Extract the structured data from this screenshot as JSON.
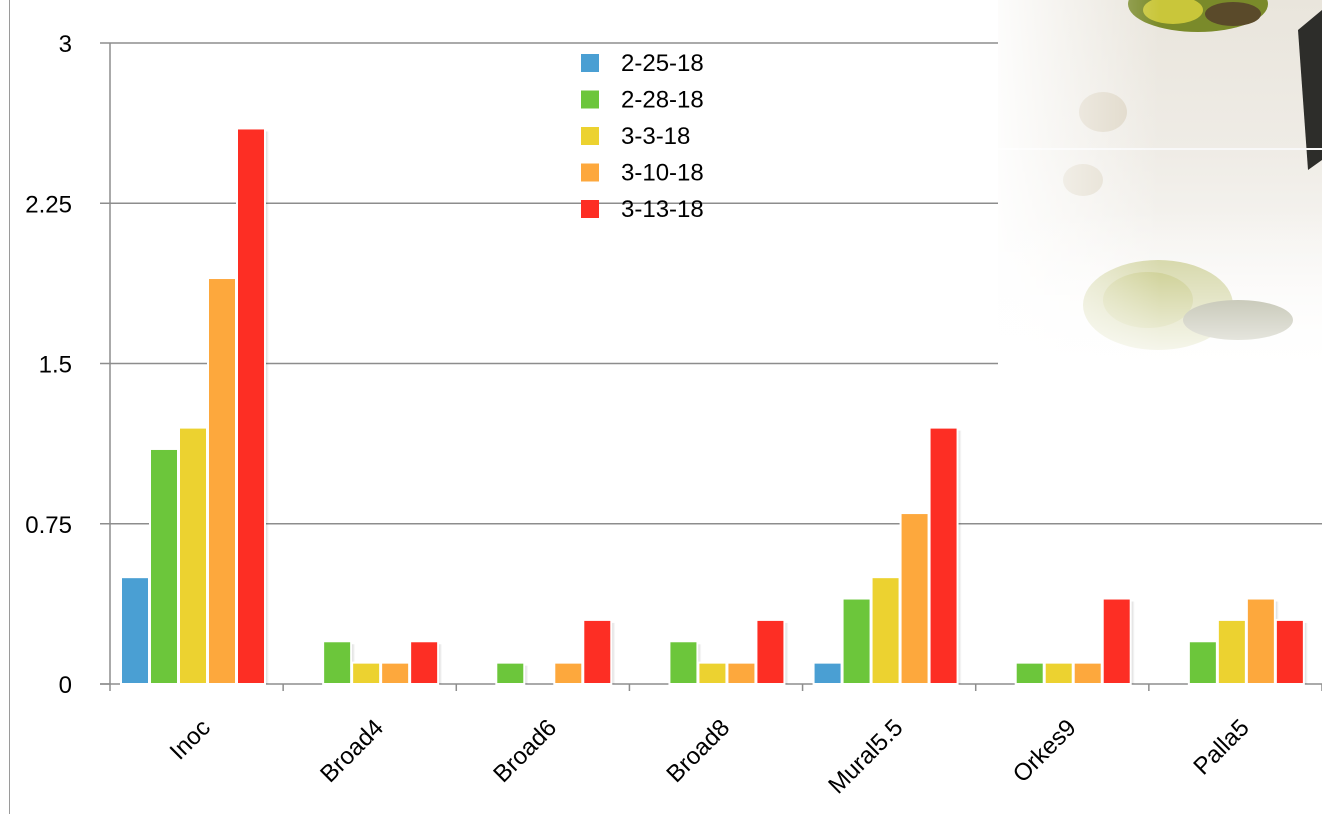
{
  "chart_data": {
    "type": "bar",
    "title": "",
    "xlabel": "",
    "ylabel": "",
    "ylim": [
      0,
      3
    ],
    "y_ticks": [
      "0",
      "0.75",
      "1.5",
      "2.25",
      "3"
    ],
    "y_tick_values": [
      0,
      0.75,
      1.5,
      2.25,
      3
    ],
    "grid": true,
    "legend_position": "top-center",
    "categories": [
      "Inoc",
      "Broad4",
      "Broad6",
      "Broad8",
      "Mural5.5",
      "Orkes9",
      "Palla5"
    ],
    "series": [
      {
        "name": "2-25-18",
        "color": "#4a9fd3",
        "values": [
          0.5,
          0,
          0,
          0,
          0.1,
          0,
          0
        ]
      },
      {
        "name": "2-28-18",
        "color": "#6cc63b",
        "values": [
          1.1,
          0.2,
          0.1,
          0.2,
          0.4,
          0.1,
          0.2
        ]
      },
      {
        "name": "3-3-18",
        "color": "#ecd230",
        "values": [
          1.2,
          0.1,
          0,
          0.1,
          0.5,
          0.1,
          0.3
        ]
      },
      {
        "name": "3-10-18",
        "color": "#fda83d",
        "values": [
          1.9,
          0.1,
          0.1,
          0.1,
          0.8,
          0.1,
          0.4
        ]
      },
      {
        "name": "3-13-18",
        "color": "#fd2e24",
        "values": [
          2.6,
          0.2,
          0.3,
          0.3,
          1.2,
          0.4,
          0.3
        ]
      }
    ]
  },
  "decor": {
    "photo_icon": "plant-leaf-photo"
  }
}
